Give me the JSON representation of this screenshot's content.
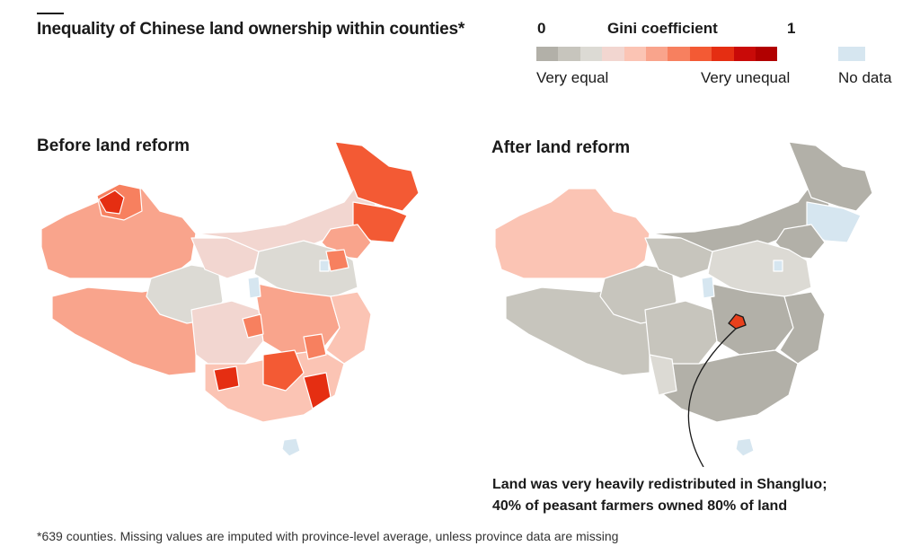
{
  "title": "Inequality of Chinese land ownership within counties*",
  "legend": {
    "min_label": "0",
    "max_label": "1",
    "title": "Gini coefficient",
    "low_label": "Very equal",
    "high_label": "Very unequal",
    "nodata_label": "No data",
    "scale_colors": [
      "#b2b0a8",
      "#c7c5bd",
      "#dcdad4",
      "#f2d6d0",
      "#fbc4b4",
      "#f9a48c",
      "#f7805f",
      "#f35a34",
      "#e52e12",
      "#c90a08",
      "#b10000"
    ],
    "nodata_color": "#d6e6f0"
  },
  "panels": {
    "before_title": "Before land reform",
    "after_title": "After land reform"
  },
  "annotation": {
    "line1": "Land was very heavily redistributed in Shangluo;",
    "line2": "40% of peasant farmers owned 80% of land",
    "highlight_color": "#e8401c"
  },
  "footnote": "*639 counties. Missing values are imputed with province-level average, unless province data are missing"
}
